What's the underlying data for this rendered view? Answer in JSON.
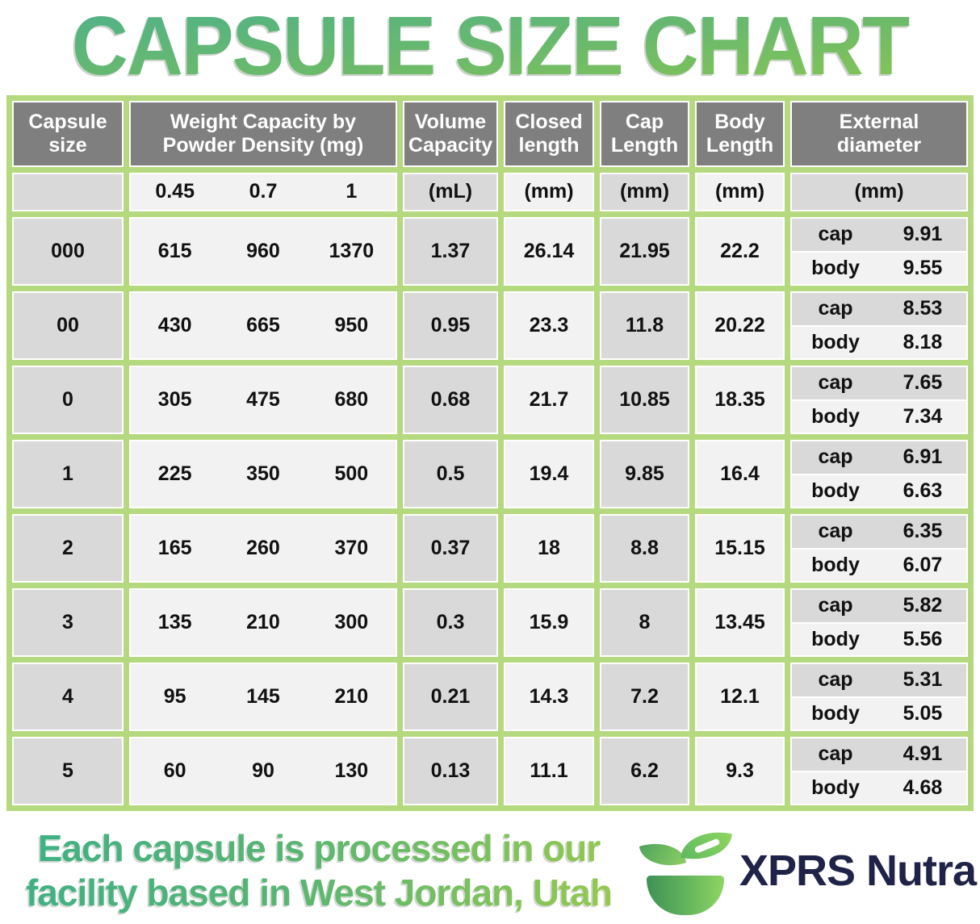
{
  "title": "CAPSULE SIZE CHART",
  "table": {
    "headers": {
      "capsule_size": "Capsule size",
      "weight": "Weight Capacity by Powder Density (mg)",
      "volume": "Volume Capacity",
      "closed": "Closed length",
      "cap": "Cap Length",
      "body": "Body Length",
      "external": "External diameter"
    },
    "units": {
      "densities": [
        "0.45",
        "0.7",
        "1"
      ],
      "volume": "(mL)",
      "closed": "(mm)",
      "cap": "(mm)",
      "body": "(mm)",
      "external": "(mm)"
    },
    "rows": [
      {
        "size": "000",
        "weights": [
          "615",
          "960",
          "1370"
        ],
        "volume": "1.37",
        "closed": "26.14",
        "cap_length": "21.95",
        "body_length": "22.2",
        "ext": {
          "cap_label": "cap",
          "cap": "9.91",
          "body_label": "body",
          "body": "9.55"
        }
      },
      {
        "size": "00",
        "weights": [
          "430",
          "665",
          "950"
        ],
        "volume": "0.95",
        "closed": "23.3",
        "cap_length": "11.8",
        "body_length": "20.22",
        "ext": {
          "cap_label": "cap",
          "cap": "8.53",
          "body_label": "body",
          "body": "8.18"
        }
      },
      {
        "size": "0",
        "weights": [
          "305",
          "475",
          "680"
        ],
        "volume": "0.68",
        "closed": "21.7",
        "cap_length": "10.85",
        "body_length": "18.35",
        "ext": {
          "cap_label": "cap",
          "cap": "7.65",
          "body_label": "body",
          "body": "7.34"
        }
      },
      {
        "size": "1",
        "weights": [
          "225",
          "350",
          "500"
        ],
        "volume": "0.5",
        "closed": "19.4",
        "cap_length": "9.85",
        "body_length": "16.4",
        "ext": {
          "cap_label": "cap",
          "cap": "6.91",
          "body_label": "body",
          "body": "6.63"
        }
      },
      {
        "size": "2",
        "weights": [
          "165",
          "260",
          "370"
        ],
        "volume": "0.37",
        "closed": "18",
        "cap_length": "8.8",
        "body_length": "15.15",
        "ext": {
          "cap_label": "cap",
          "cap": "6.35",
          "body_label": "body",
          "body": "6.07"
        }
      },
      {
        "size": "3",
        "weights": [
          "135",
          "210",
          "300"
        ],
        "volume": "0.3",
        "closed": "15.9",
        "cap_length": "8",
        "body_length": "13.45",
        "ext": {
          "cap_label": "cap",
          "cap": "5.82",
          "body_label": "body",
          "body": "5.56"
        }
      },
      {
        "size": "4",
        "weights": [
          "95",
          "145",
          "210"
        ],
        "volume": "0.21",
        "closed": "14.3",
        "cap_length": "7.2",
        "body_length": "12.1",
        "ext": {
          "cap_label": "cap",
          "cap": "5.31",
          "body_label": "body",
          "body": "5.05"
        }
      },
      {
        "size": "5",
        "weights": [
          "60",
          "90",
          "130"
        ],
        "volume": "0.13",
        "closed": "11.1",
        "cap_length": "6.2",
        "body_length": "9.3",
        "ext": {
          "cap_label": "cap",
          "cap": "4.91",
          "body_label": "body",
          "body": "4.68"
        }
      }
    ]
  },
  "footer": {
    "line1": "Each capsule is processed in our",
    "line2": "facility based in West Jordan, Utah",
    "brand": "XPRS Nutra"
  },
  "colors": {
    "table_border_green": "#b5d97e",
    "header_gray": "#7f7f7f",
    "cell_gray": "#d9d9d9",
    "cell_light": "#f2f2f2",
    "title_gradient_top": "#4fb287",
    "title_gradient_bottom": "#8ec84f",
    "brand_navy": "#1f2347",
    "logo_green_dark": "#3f9155",
    "logo_green_light": "#90d464"
  },
  "chart_data": {
    "type": "table",
    "title": "CAPSULE SIZE CHART",
    "columns": [
      "Capsule size",
      "Weight Capacity @0.45 g/mL (mg)",
      "Weight Capacity @0.7 g/mL (mg)",
      "Weight Capacity @1 g/mL (mg)",
      "Volume Capacity (mL)",
      "Closed length (mm)",
      "Cap Length (mm)",
      "Body Length (mm)",
      "External diameter cap (mm)",
      "External diameter body (mm)"
    ],
    "rows": [
      [
        "000",
        615,
        960,
        1370,
        1.37,
        26.14,
        21.95,
        22.2,
        9.91,
        9.55
      ],
      [
        "00",
        430,
        665,
        950,
        0.95,
        23.3,
        11.8,
        20.22,
        8.53,
        8.18
      ],
      [
        "0",
        305,
        475,
        680,
        0.68,
        21.7,
        10.85,
        18.35,
        7.65,
        7.34
      ],
      [
        "1",
        225,
        350,
        500,
        0.5,
        19.4,
        9.85,
        16.4,
        6.91,
        6.63
      ],
      [
        "2",
        165,
        260,
        370,
        0.37,
        18,
        8.8,
        15.15,
        6.35,
        6.07
      ],
      [
        "3",
        135,
        210,
        300,
        0.3,
        15.9,
        8,
        13.45,
        5.82,
        5.56
      ],
      [
        "4",
        95,
        145,
        210,
        0.21,
        14.3,
        7.2,
        12.1,
        5.31,
        5.05
      ],
      [
        "5",
        60,
        90,
        130,
        0.13,
        11.1,
        6.2,
        9.3,
        4.91,
        4.68
      ]
    ]
  }
}
